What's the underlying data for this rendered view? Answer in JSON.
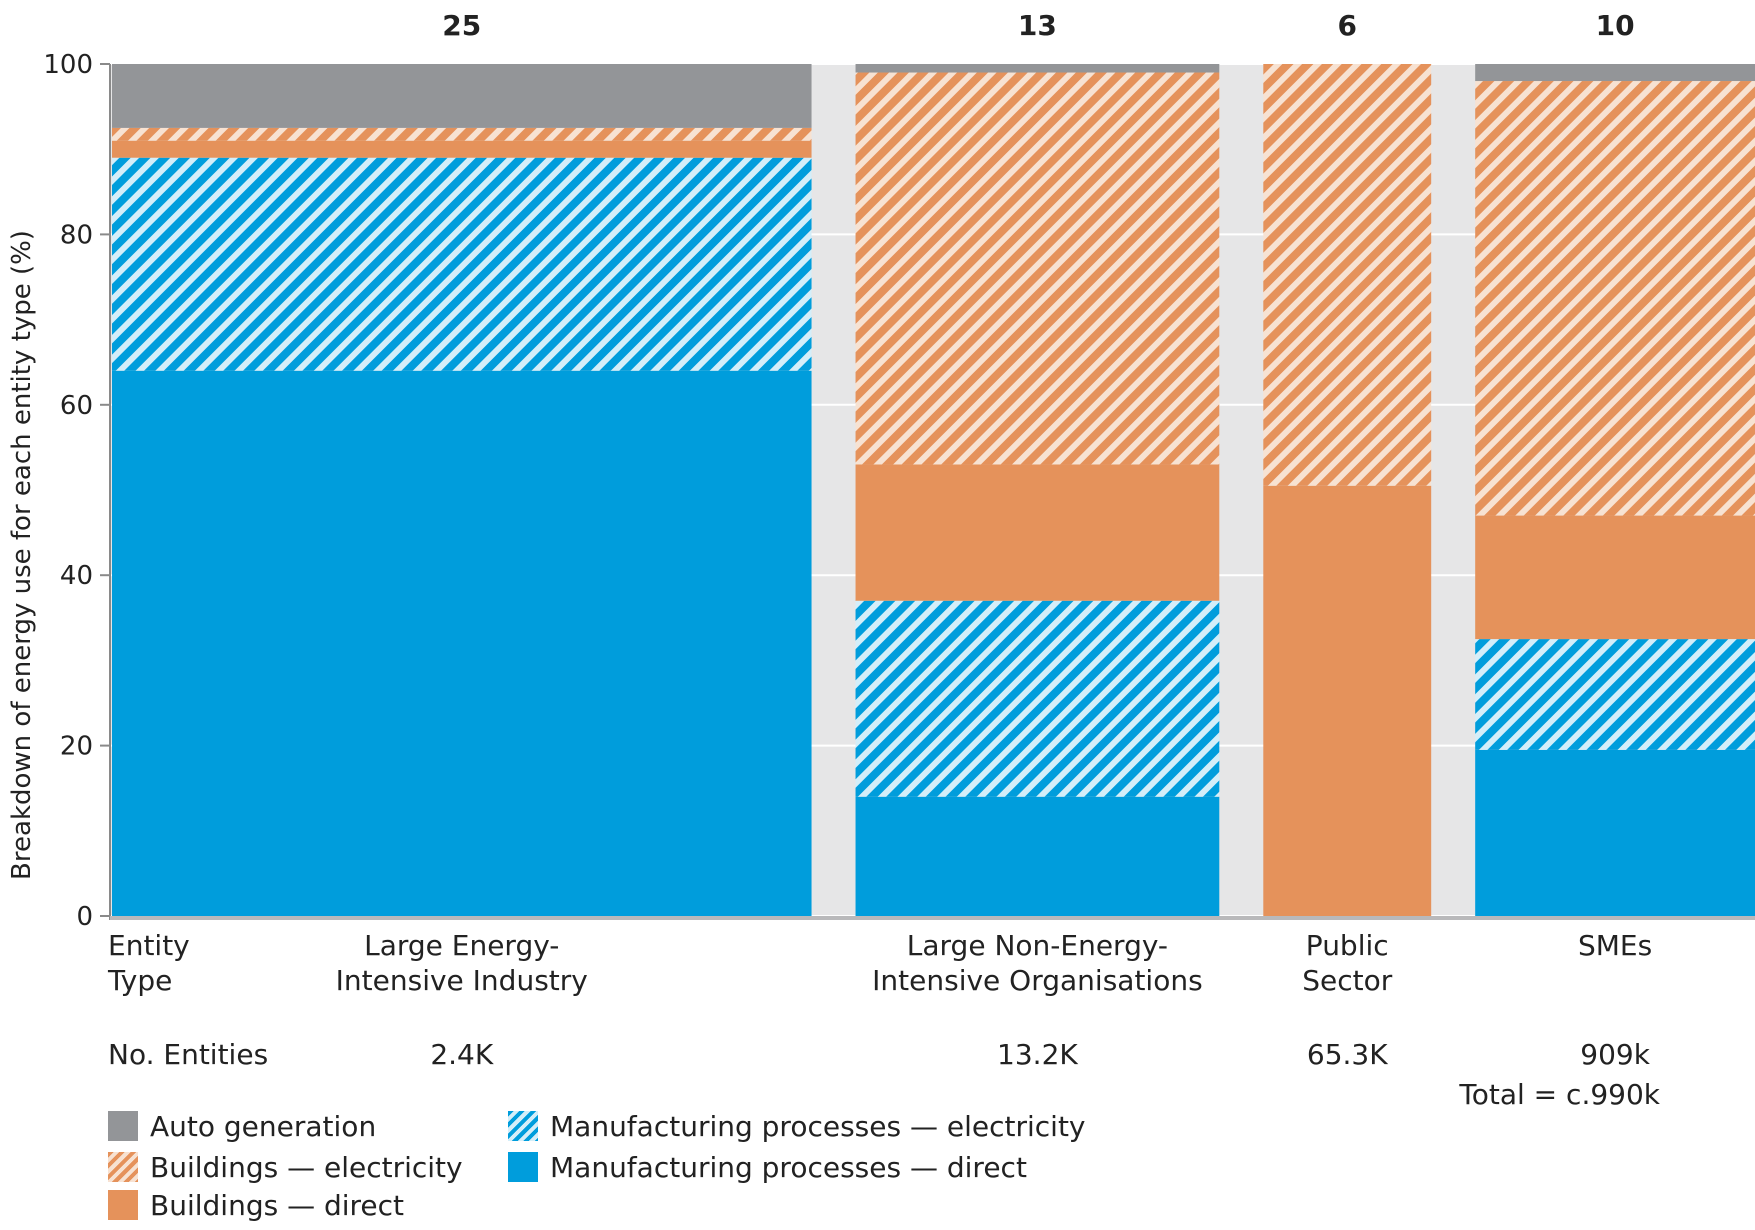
{
  "chart_data": {
    "type": "bar",
    "variant": "marimekko-stacked-percent",
    "ylabel": "Breakdown of energy use for each entity type (%)",
    "ylim": [
      0,
      100
    ],
    "yticks": [
      0,
      20,
      40,
      60,
      80,
      100
    ],
    "grid": true,
    "row_labels": {
      "entity_type": "Entity Type",
      "no_entities": "No. Entities"
    },
    "total_label": "Total = c.990k",
    "categories": [
      {
        "name": "Large Energy-Intensive Industry",
        "width_value": 25,
        "top_label": "25",
        "entities": "2.4K"
      },
      {
        "name": "Large Non-Energy-Intensive Organisations",
        "width_value": 13,
        "top_label": "13",
        "entities": "13.2K"
      },
      {
        "name": "Public Sector",
        "width_value": 6,
        "top_label": "6",
        "entities": "65.3K"
      },
      {
        "name": "SMEs",
        "width_value": 10,
        "top_label": "10",
        "entities": "909k"
      }
    ],
    "series": [
      {
        "name": "Manufacturing processes — direct",
        "key": "mfg_direct",
        "color": "#009ddc",
        "hatched": false,
        "values": [
          64,
          14,
          0,
          19.5
        ]
      },
      {
        "name": "Manufacturing processes — electricity",
        "key": "mfg_elec",
        "color": "#009ddc",
        "hatched": true,
        "values": [
          25,
          23,
          0,
          13
        ]
      },
      {
        "name": "Buildings — direct",
        "key": "bld_direct",
        "color": "#e5925b",
        "hatched": false,
        "values": [
          2,
          16,
          50.5,
          14.5
        ]
      },
      {
        "name": "Buildings — electricity",
        "key": "bld_elec",
        "color": "#e5925b",
        "hatched": true,
        "values": [
          1.5,
          46,
          49.5,
          51
        ]
      },
      {
        "name": "Auto generation",
        "key": "auto",
        "color": "#939598",
        "hatched": false,
        "values": [
          7.5,
          1,
          0,
          2
        ]
      }
    ],
    "legend_order": [
      "auto",
      "bld_elec",
      "bld_direct",
      "mfg_elec",
      "mfg_direct"
    ],
    "legend_placement": "bottom-left"
  }
}
